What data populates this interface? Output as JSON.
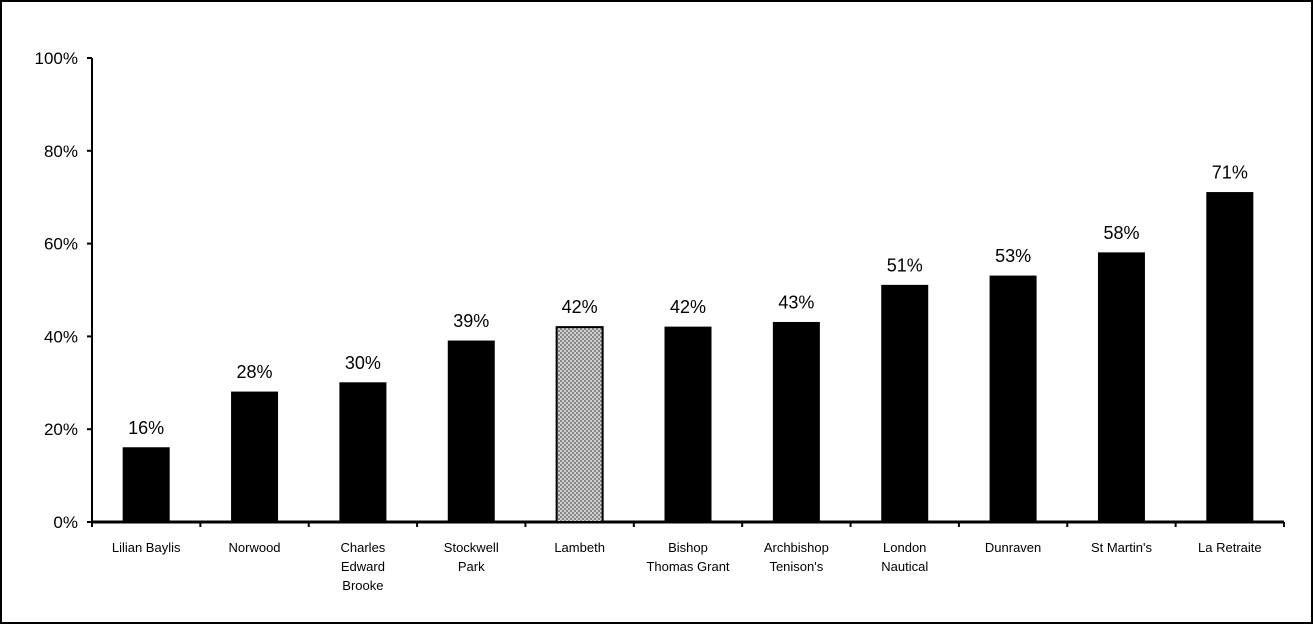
{
  "chart_data": {
    "type": "bar",
    "categories": [
      [
        "Lilian Baylis"
      ],
      [
        "Norwood"
      ],
      [
        "Charles",
        "Edward",
        "Brooke"
      ],
      [
        "Stockwell",
        "Park"
      ],
      [
        "Lambeth"
      ],
      [
        "Bishop",
        "Thomas Grant"
      ],
      [
        "Archbishop",
        "Tenison's"
      ],
      [
        "London",
        "Nautical"
      ],
      [
        "Dunraven"
      ],
      [
        "St Martin's"
      ],
      [
        "La Retraite"
      ]
    ],
    "values": [
      16,
      28,
      30,
      39,
      42,
      42,
      43,
      51,
      53,
      58,
      71
    ],
    "data_labels": [
      "16%",
      "28%",
      "30%",
      "39%",
      "42%",
      "42%",
      "43%",
      "51%",
      "53%",
      "58%",
      "71%"
    ],
    "highlight_index": 4,
    "ylim": [
      0,
      100
    ],
    "yticks": [
      0,
      20,
      40,
      60,
      80,
      100
    ],
    "ytick_labels": [
      "0%",
      "20%",
      "40%",
      "60%",
      "80%",
      "100%"
    ],
    "title": "",
    "xlabel": "",
    "ylabel": "",
    "grid": false,
    "legend": "none",
    "colors": {
      "bar": "#000000",
      "highlight_fill": "#d0d0d0",
      "highlight_dots": "#555555"
    }
  }
}
